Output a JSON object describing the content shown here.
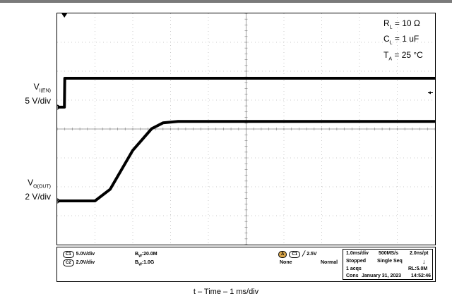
{
  "chart_data": {
    "type": "line",
    "xlabel": "t – Time – 1 ms/div",
    "time_per_div": "1 ms/div",
    "x_unit": "ms",
    "x_range": [
      0,
      10
    ],
    "series": [
      {
        "name": "V_I(EN)",
        "label_main": "V",
        "label_sub": "I(EN)",
        "scale": "5 V/div",
        "channel": "1",
        "color": "#000000",
        "points": [
          [
            0,
            0
          ],
          [
            0.19,
            0
          ],
          [
            0.2,
            5
          ],
          [
            10,
            5
          ]
        ],
        "unit": "V"
      },
      {
        "name": "V_O(OUT)",
        "label_main": "V",
        "label_sub": "O(OUT)",
        "scale": "2 V/div",
        "channel": "2",
        "color": "#000000",
        "points": [
          [
            0,
            0
          ],
          [
            1.0,
            0
          ],
          [
            1.4,
            0.8
          ],
          [
            2.0,
            3.5
          ],
          [
            2.5,
            5.0
          ],
          [
            2.8,
            5.4
          ],
          [
            3.2,
            5.5
          ],
          [
            10,
            5.5
          ]
        ],
        "unit": "V"
      }
    ],
    "annotations": [
      {
        "main": "R",
        "sub": "L",
        "rest": " = 10 Ω"
      },
      {
        "main": "C",
        "sub": "L",
        "rest": " = 1 uF"
      },
      {
        "main": "T",
        "sub": "A",
        "rest": " = 25 °C"
      }
    ],
    "grid": true
  },
  "status_bar": {
    "ch1_badge": "C1",
    "ch1_scale": "5.0V/div",
    "ch2_badge": "C2",
    "ch2_scale": "2.0V/div",
    "bw1": "B",
    "bw1_sub": "W",
    "bw1_val": ":20.0M",
    "bw2": "B",
    "bw2_sub": "W",
    "bw2_val": ":1.0G",
    "trig_a": "A",
    "trig_ch": "C1",
    "trig_level": "2.5V",
    "trig_none": "None",
    "trig_mode": "Normal",
    "timebase": "1.0ms/div",
    "sample_rate": "500MS/s",
    "resolution": "2.0ns/pt",
    "run_state": "Stopped",
    "seq_mode": "Single Seq",
    "acqs": "1 acqs",
    "record_length": "RL:5.0M",
    "coupling": "Cons",
    "date": "January 31, 2023",
    "time": "14:52:46"
  }
}
